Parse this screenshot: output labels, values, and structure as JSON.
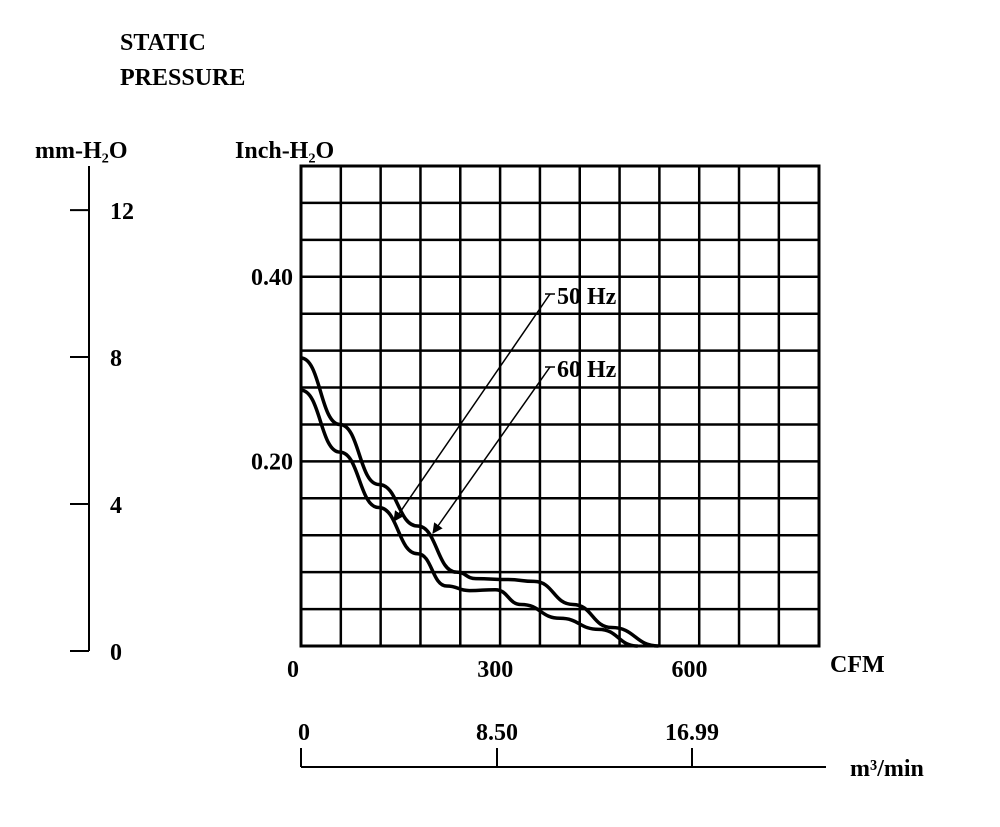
{
  "chart_data": {
    "type": "line",
    "title_lines": [
      "STATIC",
      "PRESSURE"
    ],
    "xlabel": "CFM",
    "ylabel": "Inch-H₂O",
    "xlim": [
      0,
      800
    ],
    "ylim": [
      0,
      0.52
    ],
    "x_ticks": [
      {
        "value": 0,
        "label": "0"
      },
      {
        "value": 300,
        "label": "300"
      },
      {
        "value": 600,
        "label": "600"
      }
    ],
    "y_ticks": [
      {
        "value": 0.2,
        "label": "0.20"
      },
      {
        "value": 0.4,
        "label": "0.40"
      }
    ],
    "grid": true,
    "grid_x_step": 61.5,
    "grid_y_step": 0.04,
    "mm_axis": {
      "label": "mm-H₂O",
      "ticks": [
        {
          "value": 0,
          "label": "0"
        },
        {
          "value": 4,
          "label": "4"
        },
        {
          "value": 8,
          "label": "8"
        },
        {
          "value": 12,
          "label": "12"
        }
      ],
      "range": [
        0,
        13.2
      ]
    },
    "m3_axis": {
      "label": "m³/min",
      "ticks": [
        {
          "value": 0,
          "label": "0"
        },
        {
          "value": 8.5,
          "label": "8.50"
        },
        {
          "value": 16.99,
          "label": "16.99"
        }
      ]
    },
    "series": [
      {
        "name": "50 Hz",
        "label": "50 Hz",
        "x": [
          0,
          60,
          120,
          180,
          225,
          260,
          300,
          340,
          400,
          460,
          520
        ],
        "y": [
          0.277,
          0.21,
          0.15,
          0.1,
          0.065,
          0.06,
          0.061,
          0.045,
          0.03,
          0.018,
          0
        ]
      },
      {
        "name": "60 Hz",
        "label": "60 Hz",
        "x": [
          0,
          60,
          120,
          180,
          240,
          270,
          320,
          360,
          420,
          480,
          552
        ],
        "y": [
          0.312,
          0.24,
          0.175,
          0.13,
          0.08,
          0.073,
          0.072,
          0.07,
          0.045,
          0.02,
          0
        ]
      }
    ]
  }
}
